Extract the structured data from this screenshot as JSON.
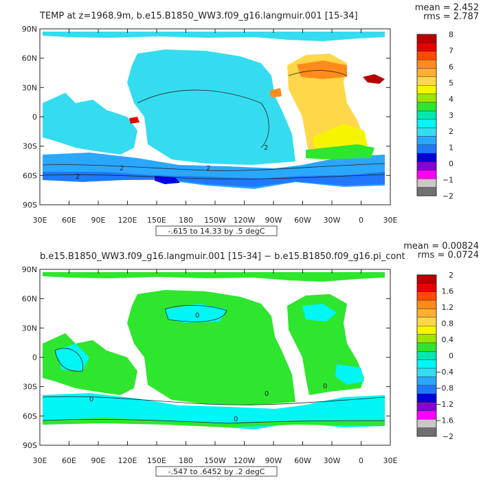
{
  "panels": [
    {
      "title": "TEMP at z=1968.9m, b.e15.B1850_WW3.f09_g16.langmuir.001 [15-34]",
      "mean_text": "mean = 2.452",
      "rms_text": "rms = 2.787",
      "range_text": "-.615 to 14.33 by .5 degC",
      "lat_ticks": [
        "90N",
        "60N",
        "30N",
        "0",
        "30S",
        "60S",
        "90S"
      ],
      "lon_ticks": [
        "30E",
        "60E",
        "90E",
        "120E",
        "150E",
        "180",
        "150W",
        "120W",
        "90W",
        "60W",
        "30W",
        "0",
        "30E"
      ],
      "colorbar_labels": [
        "8",
        "7",
        "6",
        "5",
        "4",
        "3",
        "2",
        "1",
        "0",
        "−1",
        "−2"
      ],
      "colorbar_colors": [
        "#b80000",
        "#e80000",
        "#ff4a00",
        "#ff8c1a",
        "#ffb030",
        "#ffd84a",
        "#f5f500",
        "#9be600",
        "#2ee62e",
        "#00e8b0",
        "#00f5f5",
        "#35dcf0",
        "#2aa8ff",
        "#1f78ff",
        "#0000dc",
        "#8a00d0",
        "#ff00ff",
        "#c8c8c8",
        "#707070"
      ],
      "contour_labels": [
        "2",
        "2",
        "2",
        "2"
      ]
    },
    {
      "title": "b.e15.B1850_WW3.f09_g16.langmuir.001 [15-34] − b.e15.B1850.f09_g16.pi_cont",
      "mean_text": "mean = 0.00824",
      "rms_text": "rms = 0.0724",
      "range_text": "-.547 to .6452 by .2 degC",
      "lat_ticks": [
        "90N",
        "60N",
        "30N",
        "0",
        "30S",
        "60S",
        "90S"
      ],
      "lon_ticks": [
        "30E",
        "60E",
        "90E",
        "120E",
        "150E",
        "180",
        "150W",
        "120W",
        "90W",
        "60W",
        "30W",
        "0",
        "30E"
      ],
      "colorbar_labels": [
        "2",
        "1.6",
        "1.2",
        "0.8",
        "0.4",
        "0",
        "−0.4",
        "−0.8",
        "−1.2",
        "−1.6",
        "−2"
      ],
      "colorbar_colors": [
        "#b80000",
        "#e80000",
        "#ff4a00",
        "#ff8c1a",
        "#ffb030",
        "#ffd84a",
        "#f5f500",
        "#9be600",
        "#2ee62e",
        "#00e8b0",
        "#00f5f5",
        "#35dcf0",
        "#2aa8ff",
        "#1f78ff",
        "#0000dc",
        "#8a00d0",
        "#ff00ff",
        "#c8c8c8",
        "#707070"
      ],
      "contour_labels": [
        "0",
        "0",
        "0",
        "0",
        "0"
      ]
    }
  ]
}
